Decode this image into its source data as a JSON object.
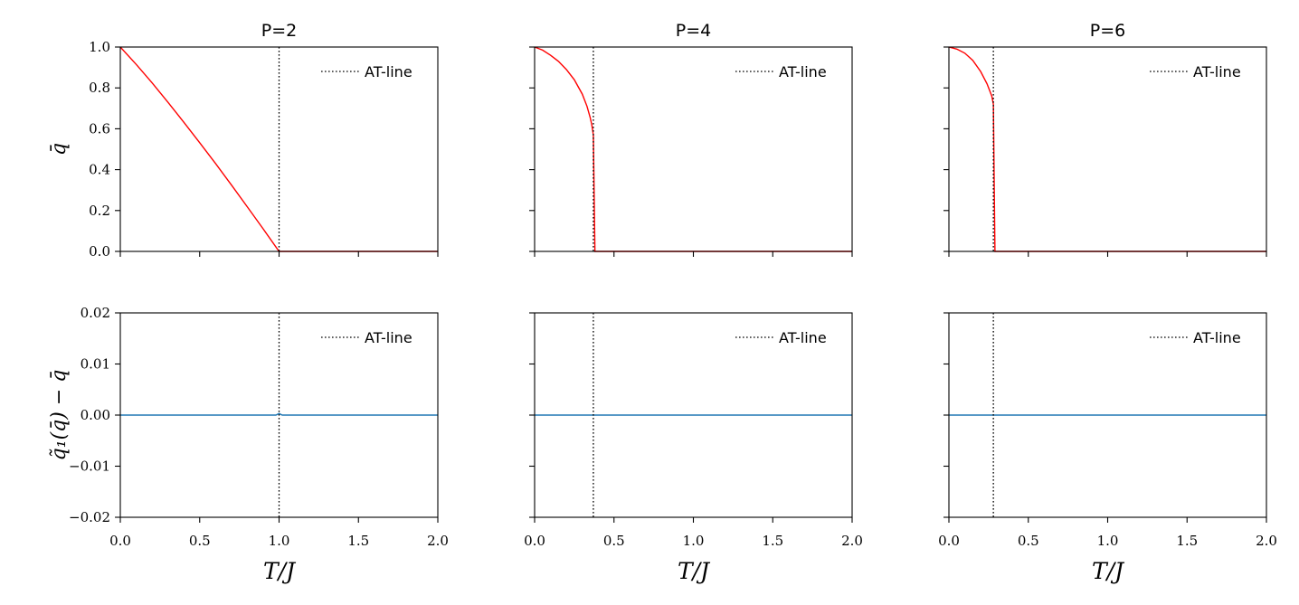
{
  "chart_data": [
    {
      "type": "line",
      "title": "P=2",
      "xlabel": "",
      "ylabel": "q̄",
      "xlim": [
        0,
        2
      ],
      "ylim": [
        0,
        1.0
      ],
      "xticks": [
        "",
        "",
        "",
        "",
        ""
      ],
      "yticks": [
        "0.0",
        "0.2",
        "0.4",
        "0.6",
        "0.8",
        "1.0"
      ],
      "vline": {
        "x": 1.0,
        "label": "AT-line"
      },
      "legend": {
        "placement": "top-right",
        "entries": [
          "AT-line"
        ]
      },
      "series": [
        {
          "color": "#ff0000",
          "x": [
            0,
            0.1,
            0.2,
            0.3,
            0.4,
            0.5,
            0.6,
            0.7,
            0.8,
            0.9,
            1.0,
            1.2,
            1.4,
            1.6,
            1.8,
            2.0
          ],
          "y": [
            1.0,
            0.915,
            0.825,
            0.73,
            0.632,
            0.532,
            0.43,
            0.325,
            0.218,
            0.11,
            0.0,
            0.0,
            0.0,
            0.0,
            0.0,
            0.0
          ]
        }
      ]
    },
    {
      "type": "line",
      "title": "P=4",
      "xlabel": "",
      "ylabel": "",
      "xlim": [
        0,
        2
      ],
      "ylim": [
        0,
        1.0
      ],
      "xticks": [
        "",
        "",
        "",
        "",
        ""
      ],
      "yticks": [
        "",
        "",
        "",
        "",
        "",
        ""
      ],
      "vline": {
        "x": 0.37,
        "label": "AT-line"
      },
      "legend": {
        "placement": "top-right",
        "entries": [
          "AT-line"
        ]
      },
      "series": [
        {
          "color": "#ff0000",
          "x": [
            0,
            0.05,
            0.1,
            0.15,
            0.2,
            0.25,
            0.3,
            0.33,
            0.35,
            0.36,
            0.37,
            0.375,
            0.38,
            0.5,
            1.0,
            1.5,
            2.0
          ],
          "y": [
            1.0,
            0.985,
            0.96,
            0.93,
            0.89,
            0.84,
            0.77,
            0.71,
            0.655,
            0.62,
            0.57,
            0.28,
            0.0,
            0.0,
            0.0,
            0.0,
            0.0
          ]
        }
      ]
    },
    {
      "type": "line",
      "title": "P=6",
      "xlabel": "",
      "ylabel": "",
      "xlim": [
        0,
        2
      ],
      "ylim": [
        0,
        1.0
      ],
      "xticks": [
        "",
        "",
        "",
        "",
        ""
      ],
      "yticks": [
        "",
        "",
        "",
        "",
        "",
        ""
      ],
      "vline": {
        "x": 0.28,
        "label": "AT-line"
      },
      "legend": {
        "placement": "top-right",
        "entries": [
          "AT-line"
        ]
      },
      "series": [
        {
          "color": "#ff0000",
          "x": [
            0,
            0.05,
            0.1,
            0.15,
            0.2,
            0.24,
            0.27,
            0.28,
            0.285,
            0.29,
            0.5,
            1.0,
            1.5,
            2.0
          ],
          "y": [
            1.0,
            0.99,
            0.97,
            0.935,
            0.88,
            0.82,
            0.76,
            0.72,
            0.35,
            0.0,
            0.0,
            0.0,
            0.0,
            0.0
          ]
        }
      ]
    },
    {
      "type": "line",
      "title": "",
      "xlabel": "T/J",
      "ylabel": "q̃₁(q̄) − q̄",
      "xlim": [
        0,
        2
      ],
      "ylim": [
        -0.02,
        0.02
      ],
      "xticks": [
        "0.0",
        "0.5",
        "1.0",
        "1.5",
        "2.0"
      ],
      "yticks": [
        "−0.02",
        "−0.01",
        "0.00",
        "0.01",
        "0.02"
      ],
      "vline": {
        "x": 1.0,
        "label": "AT-line"
      },
      "legend": {
        "placement": "top-right",
        "entries": [
          "AT-line"
        ]
      },
      "series": [
        {
          "color": "#1f77b4",
          "x": [
            0,
            0.5,
            0.98,
            1.0,
            1.02,
            2.0
          ],
          "y": [
            0.0,
            0.0,
            0.0,
            0.0003,
            0.0,
            0.0
          ]
        }
      ]
    },
    {
      "type": "line",
      "title": "",
      "xlabel": "T/J",
      "ylabel": "",
      "xlim": [
        0,
        2
      ],
      "ylim": [
        -0.02,
        0.02
      ],
      "xticks": [
        "0.0",
        "0.5",
        "1.0",
        "1.5",
        "2.0"
      ],
      "yticks": [
        "",
        "",
        "",
        "",
        ""
      ],
      "vline": {
        "x": 0.37,
        "label": "AT-line"
      },
      "legend": {
        "placement": "top-right",
        "entries": [
          "AT-line"
        ]
      },
      "series": [
        {
          "color": "#1f77b4",
          "x": [
            0,
            2.0
          ],
          "y": [
            0.0,
            0.0
          ]
        }
      ]
    },
    {
      "type": "line",
      "title": "",
      "xlabel": "T/J",
      "ylabel": "",
      "xlim": [
        0,
        2
      ],
      "ylim": [
        -0.02,
        0.02
      ],
      "xticks": [
        "0.0",
        "0.5",
        "1.0",
        "1.5",
        "2.0"
      ],
      "yticks": [
        "",
        "",
        "",
        "",
        ""
      ],
      "vline": {
        "x": 0.28,
        "label": "AT-line"
      },
      "legend": {
        "placement": "top-right",
        "entries": [
          "AT-line"
        ]
      },
      "series": [
        {
          "color": "#1f77b4",
          "x": [
            0,
            2.0
          ],
          "y": [
            0.0,
            0.0
          ]
        }
      ]
    }
  ]
}
